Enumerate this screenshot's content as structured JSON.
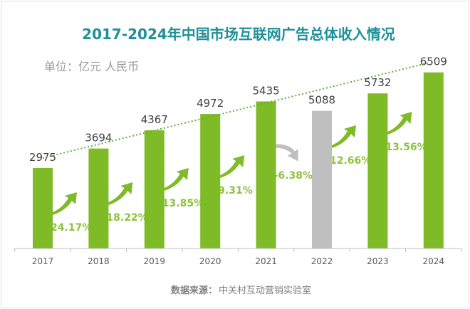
{
  "chart_data": {
    "type": "bar",
    "title": "2017-2024年中国市场互联网广告总体收入情况",
    "unit_label": "单位：亿元 人民币",
    "categories": [
      "2017",
      "2018",
      "2019",
      "2020",
      "2021",
      "2022",
      "2023",
      "2024"
    ],
    "values": [
      2975,
      3694,
      4367,
      4972,
      5435,
      5088,
      5732,
      6509
    ],
    "growth_labels": [
      "24.17%",
      "18.22%",
      "13.85%",
      "9.31%",
      "-6.38%",
      "12.66%",
      "13.56%"
    ],
    "growth_direction": [
      "up",
      "up",
      "up",
      "up",
      "down",
      "up",
      "up"
    ],
    "bar_colors": [
      "#7fba27",
      "#7fba27",
      "#7fba27",
      "#7fba27",
      "#7fba27",
      "#bfbfbf",
      "#7fba27",
      "#7fba27"
    ],
    "trendline": {
      "style": "dotted",
      "color": "#5fae3a"
    },
    "ylim": [
      0,
      6800
    ],
    "grid": false,
    "source_label": "数据来源：",
    "source_value": "中关村互动营销实验室"
  },
  "colors": {
    "title": "#1e9099",
    "green": "#7fba27",
    "gray": "#bfbfbf",
    "label_green": "#8cc43a"
  }
}
